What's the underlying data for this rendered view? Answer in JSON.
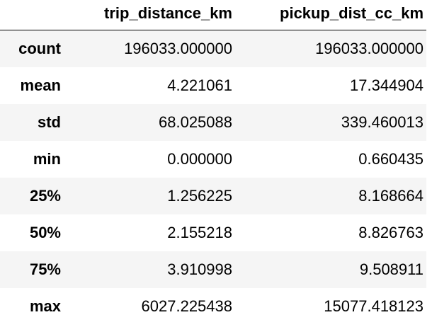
{
  "table": {
    "index_header": "",
    "columns": [
      "trip_distance_km",
      "pickup_dist_cc_km"
    ],
    "rows": [
      {
        "label": "count",
        "values": [
          "196033.000000",
          "196033.000000"
        ]
      },
      {
        "label": "mean",
        "values": [
          "4.221061",
          "17.344904"
        ]
      },
      {
        "label": "std",
        "values": [
          "68.025088",
          "339.460013"
        ]
      },
      {
        "label": "min",
        "values": [
          "0.000000",
          "0.660435"
        ]
      },
      {
        "label": "25%",
        "values": [
          "1.256225",
          "8.168664"
        ]
      },
      {
        "label": "50%",
        "values": [
          "2.155218",
          "8.826763"
        ]
      },
      {
        "label": "75%",
        "values": [
          "3.910998",
          "9.508911"
        ]
      },
      {
        "label": "max",
        "values": [
          "6027.225438",
          "15077.418123"
        ]
      }
    ]
  }
}
